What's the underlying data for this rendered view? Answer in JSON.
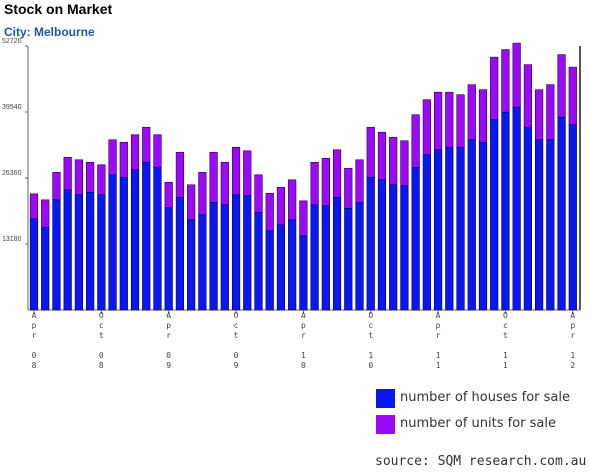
{
  "header": {
    "title": "Stock on Market",
    "subtitle": "City: Melbourne"
  },
  "source": "source: SQM research.com.au",
  "colors": {
    "houses": "#0a17f0",
    "units": "#9a0af5",
    "axis": "#666666"
  },
  "chart_data": {
    "type": "bar",
    "stacked": true,
    "yticks": [
      "13180",
      "26360",
      "39540",
      "52720"
    ],
    "ylim": [
      0,
      52720
    ],
    "series": [
      {
        "name": "number of houses for sale",
        "values": [
          18200,
          16500,
          22000,
          24000,
          23000,
          23500,
          23000,
          27000,
          26500,
          28000,
          29500,
          28500,
          20500,
          22500,
          18000,
          19000,
          21500,
          21000,
          23000,
          22800,
          19500,
          15800,
          17000,
          18000,
          14800,
          21000,
          20800,
          22500,
          20300,
          21500,
          26500,
          26000,
          25000,
          24800,
          28500,
          31000,
          32000,
          32500,
          32500,
          34000,
          33500,
          38000,
          39500,
          40500,
          36500,
          34000,
          34000,
          38500,
          37000
        ]
      },
      {
        "name": "number of units for sale",
        "values": [
          5000,
          5500,
          5500,
          6500,
          7000,
          6000,
          6000,
          7000,
          7000,
          7000,
          7000,
          6500,
          5000,
          9000,
          7000,
          8500,
          10000,
          8500,
          9500,
          9000,
          7500,
          7500,
          7500,
          8000,
          7000,
          8500,
          9500,
          9500,
          8000,
          8500,
          10000,
          9500,
          9500,
          9000,
          10500,
          11000,
          11500,
          11000,
          10500,
          11000,
          10500,
          12500,
          12500,
          12800,
          12500,
          10000,
          11000,
          12500,
          11500
        ]
      }
    ],
    "xticks": [
      {
        "index": 0,
        "text": "Apr 08"
      },
      {
        "index": 6,
        "text": "Oct 08"
      },
      {
        "index": 12,
        "text": "Apr 09"
      },
      {
        "index": 18,
        "text": "Oct 09"
      },
      {
        "index": 24,
        "text": "Apr 10"
      },
      {
        "index": 30,
        "text": "Oct 10"
      },
      {
        "index": 36,
        "text": "Apr 11"
      },
      {
        "index": 42,
        "text": "Oct 11"
      },
      {
        "index": 48,
        "text": "Apr 12"
      }
    ]
  }
}
